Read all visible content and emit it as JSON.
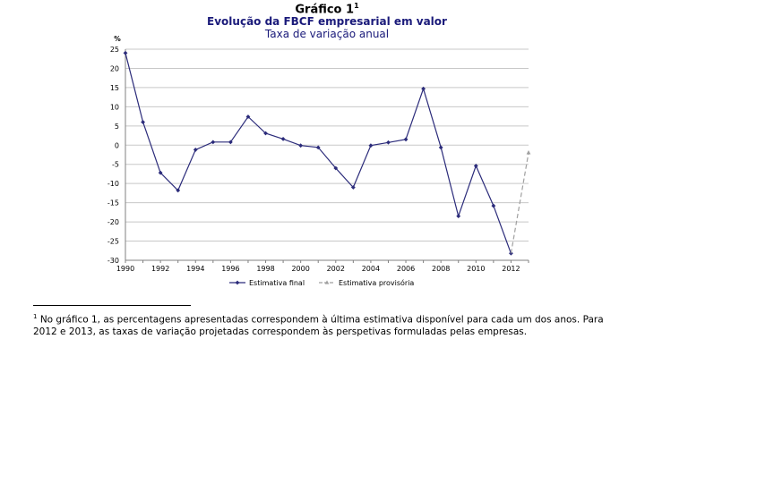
{
  "header": {
    "title": "Gráfico 1",
    "title_sup": "1",
    "subtitle": "Evolução da FBCF empresarial  em valor",
    "subtitle2": "Taxa de variação anual"
  },
  "footnote": {
    "marker": "1",
    "text": "No gráfico 1, as percentagens apresentadas correspondem à última estimativa disponível para cada um dos anos. Para 2012 e 2013, as taxas de variação projetadas correspondem às perspetivas formuladas pelas empresas."
  },
  "chart_data": {
    "type": "line",
    "ylabel": "%",
    "xlabel": "",
    "ylim": [
      -30,
      25
    ],
    "yticks": [
      25,
      20,
      15,
      10,
      5,
      0,
      -5,
      -10,
      -15,
      -20,
      -25,
      -30
    ],
    "xlim": [
      1990,
      2013
    ],
    "xticks": [
      "1990",
      "1992",
      "1994",
      "1996",
      "1998",
      "2000",
      "2002",
      "2004",
      "2006",
      "2008",
      "2010",
      "2012"
    ],
    "grid": true,
    "legend_position": "bottom",
    "series": [
      {
        "name": "Estimativa final",
        "color": "#2b2b7a",
        "style": "solid",
        "marker": "diamond",
        "x": [
          1990,
          1991,
          1992,
          1993,
          1994,
          1995,
          1996,
          1997,
          1998,
          1999,
          2000,
          2001,
          2002,
          2003,
          2004,
          2005,
          2006,
          2007,
          2008,
          2009,
          2010,
          2011,
          2012
        ],
        "y": [
          24,
          6,
          -7.2,
          -11.8,
          -1.2,
          0.8,
          0.8,
          7.4,
          3.1,
          1.6,
          -0.1,
          -0.6,
          -6,
          -11,
          -0.1,
          0.7,
          1.5,
          14.7,
          -0.6,
          -18.5,
          -5.4,
          -15.8,
          -28.2
        ]
      },
      {
        "name": "Estimativa provisória",
        "color": "#a0a0a0",
        "style": "dashed",
        "marker": "triangle",
        "x": [
          2012,
          2013
        ],
        "y": [
          -28.2,
          -2
        ]
      }
    ]
  }
}
